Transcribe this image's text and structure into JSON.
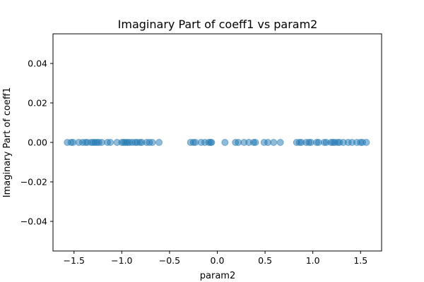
{
  "chart_data": {
    "type": "scatter",
    "title": "Imaginary Part of coeff1 vs param2",
    "xlabel": "param2",
    "ylabel": "Imaginary Part of coeff1",
    "xlim": [
      -1.72,
      1.72
    ],
    "ylim": [
      -0.055,
      0.055
    ],
    "xticks": [
      -1.5,
      -1.0,
      -0.5,
      0.0,
      0.5,
      1.0,
      1.5
    ],
    "xtick_labels": [
      "−1.5",
      "−1.0",
      "−0.5",
      "0.0",
      "0.5",
      "1.0",
      "1.5"
    ],
    "yticks": [
      -0.04,
      -0.02,
      0.0,
      0.02,
      0.04
    ],
    "ytick_labels": [
      "−0.04",
      "−0.02",
      "0.00",
      "0.02",
      "0.04"
    ],
    "grid": false,
    "legend": "none",
    "marker_color": "#1f77b4",
    "marker_alpha": 0.5,
    "series": [
      {
        "x": [
          -1.57,
          -1.53,
          -1.51,
          -1.45,
          -1.41,
          -1.38,
          -1.36,
          -1.32,
          -1.3,
          -1.28,
          -1.26,
          -1.24,
          -1.21,
          -1.15,
          -1.12,
          -1.05,
          -1.0,
          -0.98,
          -0.96,
          -0.94,
          -0.92,
          -0.89,
          -0.86,
          -0.84,
          -0.81,
          -0.79,
          -0.74,
          -0.71,
          -0.68,
          -0.61,
          -0.28,
          -0.25,
          -0.23,
          -0.17,
          -0.13,
          -0.09,
          -0.07,
          -0.06,
          0.08,
          0.19,
          0.22,
          0.28,
          0.33,
          0.38,
          0.4,
          0.49,
          0.53,
          0.59,
          0.66,
          0.83,
          0.86,
          0.88,
          0.93,
          0.96,
          0.98,
          1.04,
          1.06,
          1.12,
          1.14,
          1.19,
          1.21,
          1.23,
          1.26,
          1.28,
          1.32,
          1.37,
          1.41,
          1.46,
          1.5,
          1.52,
          1.56
        ],
        "y": [
          0,
          0,
          0,
          0,
          0,
          0,
          0,
          0,
          0,
          0,
          0,
          0,
          0,
          0,
          0,
          0,
          0,
          0,
          0,
          0,
          0,
          0,
          0,
          0,
          0,
          0,
          0,
          0,
          0,
          0,
          0,
          0,
          0,
          0,
          0,
          0,
          0,
          0,
          0,
          0,
          0,
          0,
          0,
          0,
          0,
          0,
          0,
          0,
          0,
          0,
          0,
          0,
          0,
          0,
          0,
          0,
          0,
          0,
          0,
          0,
          0,
          0,
          0,
          0,
          0,
          0,
          0,
          0,
          0,
          0,
          0
        ]
      }
    ]
  }
}
